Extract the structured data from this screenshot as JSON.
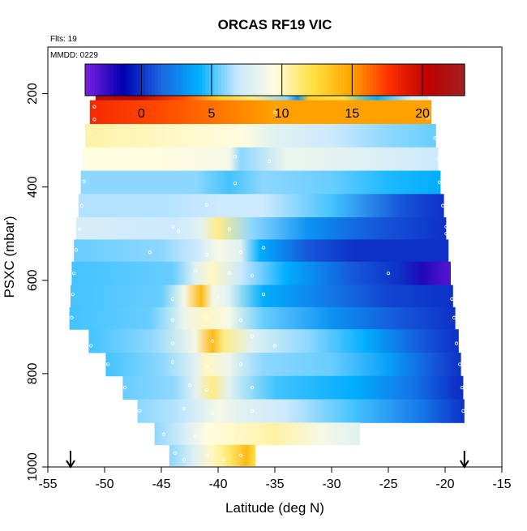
{
  "chart_data": {
    "type": "heatmap",
    "title": "ORCAS RF19 VIC",
    "notes": {
      "flights": "Flts: 19",
      "date": "MMDD: 0229"
    },
    "xlabel": "Latitude (deg N)",
    "ylabel": "PSXC (mbar)",
    "xlim": [
      -55,
      -15
    ],
    "ylim": [
      1000,
      100
    ],
    "xticks": [
      -55,
      -50,
      -45,
      -40,
      -35,
      -30,
      -25,
      -20,
      -15
    ],
    "yticks": [
      200,
      400,
      600,
      800,
      1000
    ],
    "grid": false,
    "colorbar": {
      "range": [
        -4,
        23
      ],
      "ticks": [
        0,
        5,
        10,
        15,
        20
      ],
      "location": "top",
      "colors": [
        "#7a1fe0",
        "#0000b0",
        "#1a66e0",
        "#00b0ff",
        "#c8e8ff",
        "#fffce0",
        "#ffe040",
        "#ffa500",
        "#ff3000",
        "#c00000",
        "#a02020"
      ]
    },
    "arrows": [
      -53,
      -18.3
    ],
    "rows": [
      {
        "p": 188,
        "x0": -50.8,
        "x1": -21.5,
        "stops": [
          [
            -50.8,
            22
          ],
          [
            -47,
            21
          ],
          [
            -43,
            17
          ],
          [
            -40,
            13
          ],
          [
            -37,
            11
          ],
          [
            -34,
            6
          ],
          [
            -33,
            3
          ],
          [
            -32,
            13
          ],
          [
            -29,
            12
          ],
          [
            -26,
            4
          ],
          [
            -23,
            8
          ],
          [
            -21.5,
            8
          ]
        ],
        "pts": [
          [
            -50.4,
            192
          ],
          [
            -35,
            192
          ],
          [
            -34,
            192
          ],
          [
            -33,
            192
          ],
          [
            -32,
            192
          ],
          [
            -31,
            192
          ],
          [
            -30,
            192
          ],
          [
            -29,
            192
          ],
          [
            -28,
            192
          ],
          [
            -27,
            192
          ],
          [
            -26,
            192
          ],
          [
            -25,
            192
          ],
          [
            -24,
            192
          ],
          [
            -23,
            192
          ],
          [
            -22,
            192
          ]
        ]
      },
      {
        "p": 240,
        "x0": -51.3,
        "x1": -21.2,
        "stops": [
          [
            -51.3,
            18
          ],
          [
            -45,
            17
          ],
          [
            -40,
            16
          ],
          [
            -35,
            15
          ],
          [
            -28,
            15
          ],
          [
            -21.2,
            15
          ]
        ],
        "pts": [
          [
            -50.9,
            228
          ],
          [
            -50.9,
            255
          ],
          [
            -35,
            240
          ],
          [
            -21.5,
            252
          ]
        ]
      },
      {
        "p": 290,
        "x0": -51.7,
        "x1": -20.8,
        "stops": [
          [
            -51.7,
            10.5
          ],
          [
            -45,
            10
          ],
          [
            -38,
            9.5
          ],
          [
            -35,
            8
          ],
          [
            -30,
            7
          ],
          [
            -25,
            6
          ],
          [
            -20.8,
            5.5
          ]
        ],
        "pts": [
          [
            -51.3,
            285
          ],
          [
            -20.9,
            295
          ]
        ]
      },
      {
        "p": 340,
        "x0": -51.9,
        "x1": -20.6,
        "stops": [
          [
            -51.9,
            9.5
          ],
          [
            -45,
            9.5
          ],
          [
            -39,
            9
          ],
          [
            -38,
            6
          ],
          [
            -34,
            8.5
          ],
          [
            -28,
            8
          ],
          [
            -20.6,
            7
          ]
        ],
        "pts": [
          [
            -51.5,
            338
          ],
          [
            -38.5,
            335
          ],
          [
            -35.5,
            345
          ],
          [
            -20.7,
            340
          ]
        ]
      },
      {
        "p": 390,
        "x0": -52.1,
        "x1": -20.4,
        "stops": [
          [
            -52.1,
            6
          ],
          [
            -42,
            6
          ],
          [
            -39,
            5
          ],
          [
            -36,
            6
          ],
          [
            -30,
            5.5
          ],
          [
            -25,
            4.5
          ],
          [
            -20.4,
            4
          ]
        ],
        "pts": [
          [
            -51.8,
            388
          ],
          [
            -38.5,
            392
          ],
          [
            -20.5,
            390
          ]
        ]
      },
      {
        "p": 440,
        "x0": -52.3,
        "x1": -20.1,
        "stops": [
          [
            -52.3,
            6.5
          ],
          [
            -45,
            6.5
          ],
          [
            -40,
            7
          ],
          [
            -36,
            7
          ],
          [
            -30,
            5
          ],
          [
            -24,
            1
          ],
          [
            -20.1,
            0
          ]
        ],
        "pts": [
          [
            -52,
            440
          ],
          [
            -41,
            438
          ],
          [
            -20.2,
            440
          ]
        ]
      },
      {
        "p": 490,
        "x0": -52.5,
        "x1": -19.9,
        "stops": [
          [
            -52.5,
            7.5
          ],
          [
            -44,
            7
          ],
          [
            -41.5,
            8
          ],
          [
            -40,
            11
          ],
          [
            -37,
            6
          ],
          [
            -32,
            3
          ],
          [
            -26,
            1
          ],
          [
            -19.9,
            0
          ]
        ],
        "pts": [
          [
            -52.2,
            490
          ],
          [
            -44,
            485
          ],
          [
            -43.5,
            495
          ],
          [
            -39,
            490
          ],
          [
            -19.9,
            485
          ],
          [
            -19.9,
            500
          ]
        ]
      },
      {
        "p": 535,
        "x0": -52.7,
        "x1": -19.7,
        "stops": [
          [
            -52.7,
            5.5
          ],
          [
            -45,
            6
          ],
          [
            -42,
            7
          ],
          [
            -40,
            9
          ],
          [
            -38,
            8
          ],
          [
            -36.3,
            4
          ],
          [
            -32,
            1
          ],
          [
            -28,
            0
          ],
          [
            -23,
            0
          ],
          [
            -21,
            0
          ],
          [
            -19.7,
            0
          ]
        ],
        "pts": [
          [
            -52.5,
            535
          ],
          [
            -46,
            540
          ],
          [
            -41,
            545
          ],
          [
            -38,
            540
          ],
          [
            -36,
            530
          ]
        ]
      },
      {
        "p": 585,
        "x0": -52.9,
        "x1": -19.5,
        "stops": [
          [
            -52.9,
            5
          ],
          [
            -44,
            5.5
          ],
          [
            -42,
            8
          ],
          [
            -40.5,
            10
          ],
          [
            -38,
            7
          ],
          [
            -34,
            4
          ],
          [
            -28,
            1
          ],
          [
            -24,
            0
          ],
          [
            -22,
            -2
          ],
          [
            -20,
            -3
          ],
          [
            -19.5,
            -3
          ]
        ],
        "pts": [
          [
            -52.7,
            585
          ],
          [
            -42,
            580
          ],
          [
            -39,
            585
          ],
          [
            -37,
            590
          ],
          [
            -25,
            585
          ]
        ]
      },
      {
        "p": 635,
        "x0": -53.0,
        "x1": -19.3,
        "stops": [
          [
            -53.0,
            5
          ],
          [
            -45,
            5.5
          ],
          [
            -43,
            9
          ],
          [
            -41.5,
            14
          ],
          [
            -40.5,
            9
          ],
          [
            -39,
            8
          ],
          [
            -36,
            4
          ],
          [
            -30,
            2
          ],
          [
            -25,
            0.5
          ],
          [
            -19.3,
            0
          ]
        ],
        "pts": [
          [
            -52.8,
            630
          ],
          [
            -44,
            640
          ],
          [
            -40,
            635
          ],
          [
            -36,
            630
          ],
          [
            -19.4,
            640
          ]
        ]
      },
      {
        "p": 680,
        "x0": -53.1,
        "x1": -19.1,
        "stops": [
          [
            -53.1,
            5
          ],
          [
            -46,
            5.5
          ],
          [
            -43,
            8.5
          ],
          [
            -41,
            10
          ],
          [
            -39,
            9
          ],
          [
            -36,
            5.5
          ],
          [
            -30,
            3
          ],
          [
            -24,
            1
          ],
          [
            -19.1,
            0
          ]
        ],
        "pts": [
          [
            -52.9,
            680
          ],
          [
            -44,
            685
          ],
          [
            -41,
            680
          ],
          [
            -38,
            685
          ],
          [
            -19.2,
            680
          ]
        ]
      },
      {
        "p": 730,
        "x0": -51.4,
        "x1": -18.8,
        "stops": [
          [
            -51.4,
            5
          ],
          [
            -46,
            6
          ],
          [
            -42,
            9
          ],
          [
            -40.5,
            14
          ],
          [
            -39.5,
            11
          ],
          [
            -37,
            8
          ],
          [
            -32,
            6
          ],
          [
            -27,
            4
          ],
          [
            -22,
            1
          ],
          [
            -18.8,
            0
          ]
        ],
        "pts": [
          [
            -51.2,
            740
          ],
          [
            -44,
            735
          ],
          [
            -40.5,
            730
          ],
          [
            -37,
            720
          ],
          [
            -35,
            740
          ],
          [
            -19,
            735
          ]
        ]
      },
      {
        "p": 780,
        "x0": -49.9,
        "x1": -18.6,
        "stops": [
          [
            -49.9,
            5
          ],
          [
            -45,
            6
          ],
          [
            -42,
            8
          ],
          [
            -41,
            10
          ],
          [
            -39,
            8.5
          ],
          [
            -36,
            6
          ],
          [
            -30,
            5.5
          ],
          [
            -25,
            3.5
          ],
          [
            -21,
            1
          ],
          [
            -18.6,
            0
          ]
        ],
        "pts": [
          [
            -49.7,
            780
          ],
          [
            -44,
            775
          ],
          [
            -41,
            785
          ],
          [
            -38,
            780
          ],
          [
            -18.7,
            780
          ]
        ]
      },
      {
        "p": 830,
        "x0": -48.4,
        "x1": -18.4,
        "stops": [
          [
            -48.4,
            5.5
          ],
          [
            -44,
            6
          ],
          [
            -42,
            8
          ],
          [
            -40.5,
            11
          ],
          [
            -39,
            8
          ],
          [
            -35,
            5
          ],
          [
            -28,
            4
          ],
          [
            -23,
            2
          ],
          [
            -19,
            0
          ],
          [
            -18.4,
            0
          ]
        ],
        "pts": [
          [
            -48.2,
            830
          ],
          [
            -42.5,
            825
          ],
          [
            -41,
            835
          ],
          [
            -37,
            830
          ],
          [
            -18.5,
            830
          ]
        ]
      },
      {
        "p": 880,
        "x0": -47.1,
        "x1": -18.3,
        "stops": [
          [
            -47.1,
            6
          ],
          [
            -44,
            6.5
          ],
          [
            -42,
            7.5
          ],
          [
            -40,
            9
          ],
          [
            -38,
            8
          ],
          [
            -34,
            7
          ],
          [
            -28,
            5
          ],
          [
            -22,
            2
          ],
          [
            -18.3,
            0
          ]
        ],
        "pts": [
          [
            -46.9,
            880
          ],
          [
            -43,
            875
          ],
          [
            -40.5,
            885
          ],
          [
            -37,
            880
          ],
          [
            -18.4,
            880
          ]
        ]
      },
      {
        "p": 930,
        "x0": -45.6,
        "x1": -27.5,
        "stops": [
          [
            -45.6,
            6
          ],
          [
            -43,
            7.5
          ],
          [
            -41,
            9.5
          ],
          [
            -38,
            10
          ],
          [
            -35,
            10.5
          ],
          [
            -31,
            9
          ],
          [
            -27.5,
            8
          ]
        ],
        "pts": [
          [
            -44.8,
            930
          ],
          [
            -42,
            935
          ],
          [
            -40,
            928
          ],
          [
            -38,
            935
          ]
        ]
      },
      {
        "p": 975,
        "x0": -44.3,
        "x1": -36.7,
        "stops": [
          [
            -44.3,
            6
          ],
          [
            -42,
            8
          ],
          [
            -40.5,
            10
          ],
          [
            -39,
            11.5
          ],
          [
            -37.5,
            14
          ],
          [
            -36.7,
            12
          ]
        ],
        "pts": [
          [
            -43.8,
            970
          ],
          [
            -43,
            985
          ],
          [
            -41,
            975
          ],
          [
            -39.5,
            985
          ],
          [
            -38,
            975
          ]
        ]
      }
    ]
  }
}
